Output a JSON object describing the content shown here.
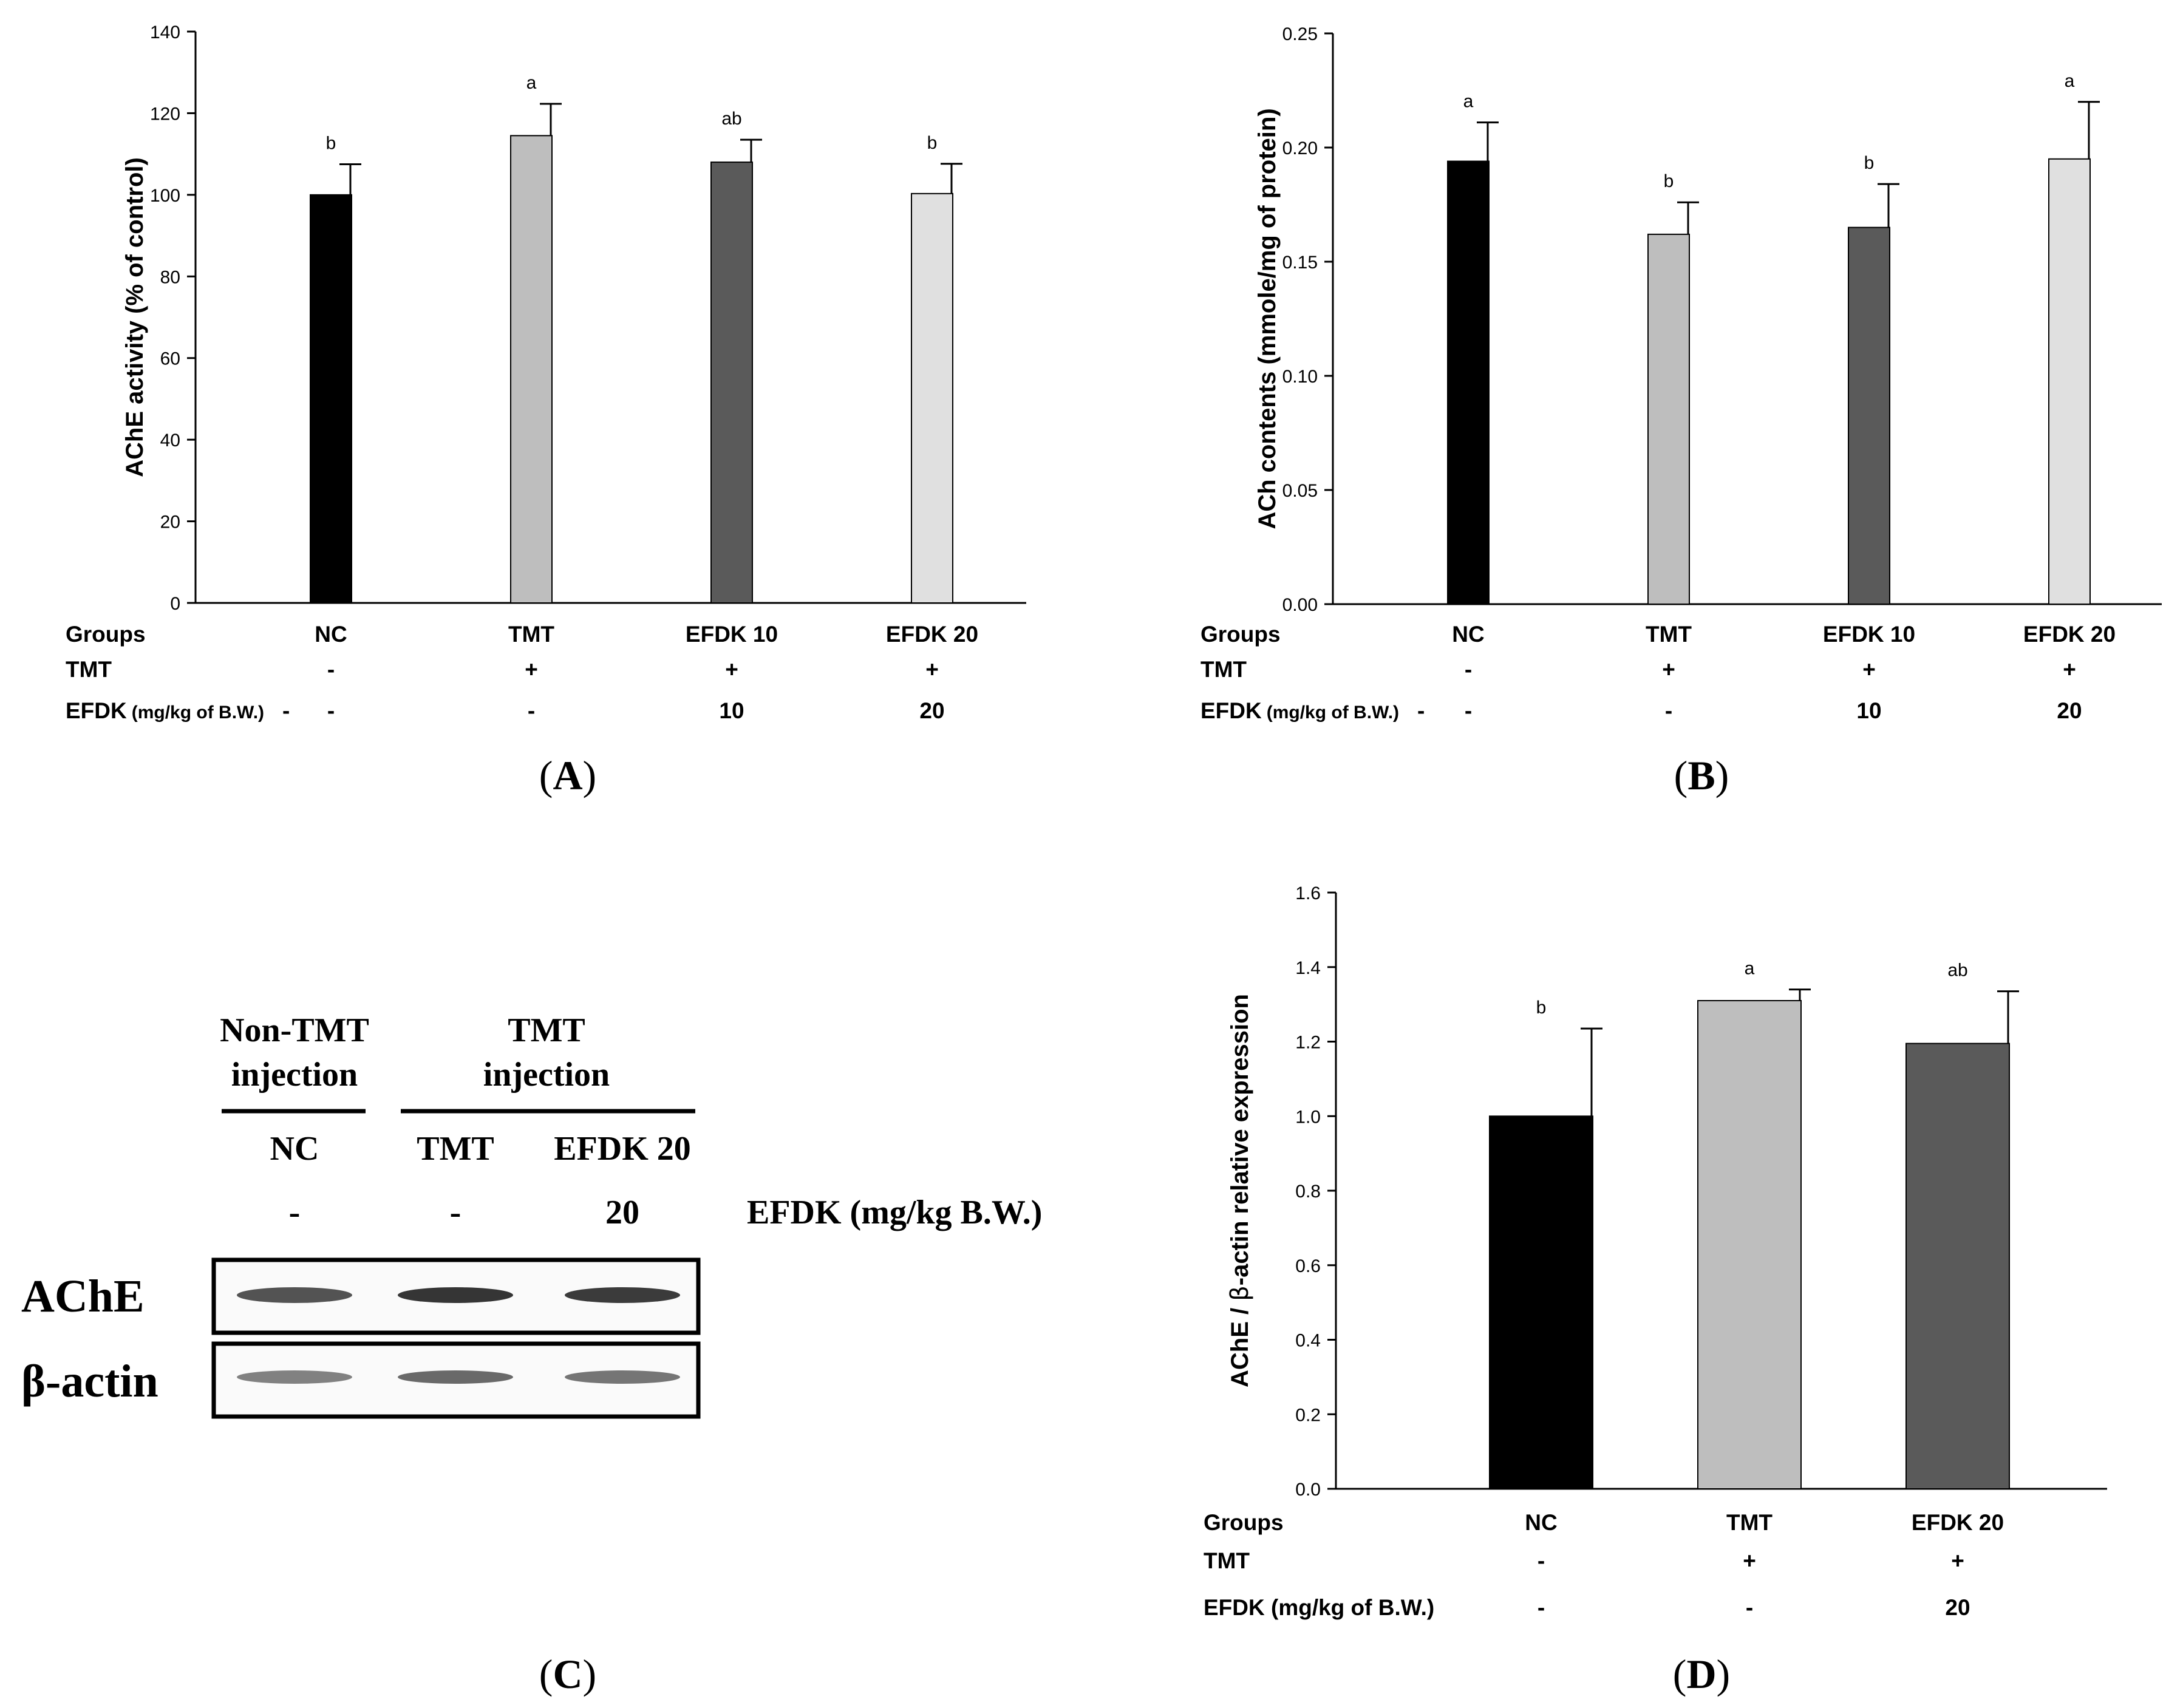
{
  "panel_labels": {
    "A": "A",
    "B": "B",
    "C": "C",
    "D": "D"
  },
  "chart_data": [
    {
      "type": "bar",
      "panel": "A",
      "title": "",
      "xlabel": "",
      "ylabel": "AChE activity (% of control)",
      "ylim": [
        0,
        140
      ],
      "yticks": [
        "0",
        "20",
        "40",
        "60",
        "80",
        "100",
        "120",
        "140"
      ],
      "categories": [
        "NC",
        "TMT",
        "EFDK 10",
        "EFDK 20"
      ],
      "values": [
        100,
        114.5,
        108,
        100.3
      ],
      "errors": [
        7.5,
        7.8,
        5.5,
        7.3
      ],
      "letters": [
        "b",
        "a",
        "ab",
        "b"
      ],
      "colors": [
        "#000000",
        "#bebebe",
        "#5a5a5a",
        "#e0e0e0"
      ],
      "table": {
        "row_labels": [
          "Groups",
          "TMT",
          "EFDK"
        ],
        "efdk_unit": "(mg/kg of B.W.)",
        "tmt_values": [
          "-",
          "+",
          "+",
          "+"
        ],
        "efdk_values": [
          "-",
          "-",
          "10",
          "20"
        ],
        "efdk_row_extra": "-"
      }
    },
    {
      "type": "bar",
      "panel": "B",
      "title": "",
      "xlabel": "",
      "ylabel": "ACh contents (mmole/mg of protein)",
      "ylim": [
        0,
        0.25
      ],
      "yticks": [
        "0.00",
        "0.05",
        "0.10",
        "0.15",
        "0.20",
        "0.25"
      ],
      "categories": [
        "NC",
        "TMT",
        "EFDK 10",
        "EFDK 20"
      ],
      "values": [
        0.194,
        0.162,
        0.165,
        0.195
      ],
      "errors": [
        0.017,
        0.014,
        0.019,
        0.025
      ],
      "letters": [
        "a",
        "b",
        "b",
        "a"
      ],
      "colors": [
        "#000000",
        "#bebebe",
        "#5a5a5a",
        "#e0e0e0"
      ],
      "table": {
        "row_labels": [
          "Groups",
          "TMT",
          "EFDK"
        ],
        "efdk_unit": "(mg/kg of B.W.)",
        "tmt_values": [
          "-",
          "+",
          "+",
          "+"
        ],
        "efdk_values": [
          "-",
          "-",
          "10",
          "20"
        ],
        "efdk_row_extra": "-"
      }
    },
    {
      "type": "bar",
      "panel": "D",
      "title": "",
      "xlabel": "",
      "ylabel_parts": [
        "AChE / ",
        "β",
        "-actin relative expression"
      ],
      "ylim": [
        0,
        1.6
      ],
      "yticks": [
        "0.0",
        "0.2",
        "0.4",
        "0.6",
        "0.8",
        "1.0",
        "1.2",
        "1.4",
        "1.6"
      ],
      "categories": [
        "NC",
        "TMT",
        "EFDK 20"
      ],
      "values": [
        1.0,
        1.31,
        1.195
      ],
      "errors": [
        0.235,
        0.03,
        0.14
      ],
      "letters": [
        "b",
        "a",
        "ab"
      ],
      "colors": [
        "#000000",
        "#bebebe",
        "#5a5a5a"
      ],
      "table": {
        "row_labels": [
          "Groups",
          "TMT",
          "EFDK (mg/kg of B.W.)"
        ],
        "tmt_values": [
          "-",
          "+",
          "+"
        ],
        "efdk_values": [
          "-",
          "-",
          "20"
        ]
      }
    }
  ],
  "blot": {
    "group_headers": [
      {
        "line1": "Non-TMT",
        "line2": "injection"
      },
      {
        "line1": "TMT",
        "line2": "injection"
      }
    ],
    "lanes": [
      "NC",
      "TMT",
      "EFDK 20"
    ],
    "doses": [
      "-",
      "-",
      "20"
    ],
    "dose_label": "EFDK (mg/kg B.W.)",
    "rows": [
      "AChE",
      "β-actin"
    ],
    "band_intensity": {
      "AChE": [
        0.75,
        0.88,
        0.85
      ],
      "β-actin": [
        0.55,
        0.65,
        0.6
      ]
    }
  }
}
